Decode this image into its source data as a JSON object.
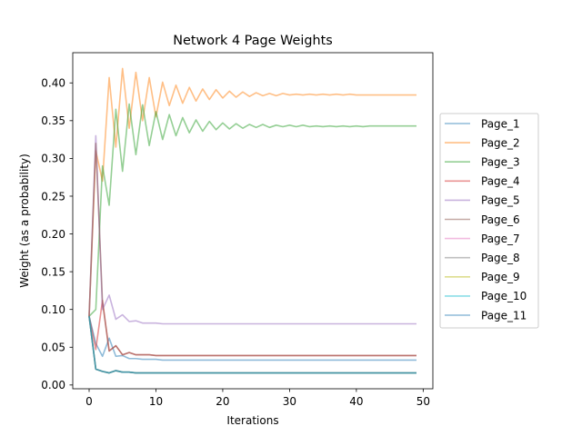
{
  "chart_data": {
    "type": "line",
    "title": "Network 4 Page Weights",
    "xlabel": "Iterations",
    "ylabel": "Weight (as a probability)",
    "xlim": [
      -2.45,
      51.45
    ],
    "ylim": [
      -0.005,
      0.44
    ],
    "xticks": [
      0,
      10,
      20,
      30,
      40,
      50
    ],
    "xtick_labels": [
      "0",
      "10",
      "20",
      "30",
      "40",
      "50"
    ],
    "yticks": [
      0.0,
      0.05,
      0.1,
      0.15,
      0.2,
      0.25,
      0.3,
      0.35,
      0.4
    ],
    "ytick_labels": [
      "0.00",
      "0.05",
      "0.10",
      "0.15",
      "0.20",
      "0.25",
      "0.30",
      "0.35",
      "0.40"
    ],
    "grid": false,
    "legend_position": "right, outside the axes",
    "line_alpha": 0.5,
    "x": [
      0,
      1,
      2,
      3,
      4,
      5,
      6,
      7,
      8,
      9,
      10,
      11,
      12,
      13,
      14,
      15,
      16,
      17,
      18,
      19,
      20,
      21,
      22,
      23,
      24,
      25,
      26,
      27,
      28,
      29,
      30,
      31,
      32,
      33,
      34,
      35,
      36,
      37,
      38,
      39,
      40,
      41,
      42,
      43,
      44,
      45,
      46,
      47,
      48,
      49
    ],
    "series": [
      {
        "name": "Page_1",
        "color": "#1f77b4",
        "values": [
          0.091,
          0.055,
          0.038,
          0.062,
          0.038,
          0.039,
          0.035,
          0.035,
          0.034,
          0.034,
          0.034,
          0.033,
          0.033,
          0.033,
          0.033,
          0.033,
          0.033,
          0.033,
          0.033,
          0.033,
          0.033,
          0.033,
          0.033,
          0.033,
          0.033,
          0.033,
          0.033,
          0.033,
          0.033,
          0.033,
          0.033,
          0.033,
          0.033,
          0.033,
          0.033,
          0.033,
          0.033,
          0.033,
          0.033,
          0.033,
          0.033,
          0.033,
          0.033,
          0.033,
          0.033,
          0.033,
          0.033,
          0.033,
          0.033,
          0.033
        ]
      },
      {
        "name": "Page_2",
        "color": "#ff7f0e",
        "values": [
          0.091,
          0.31,
          0.27,
          0.407,
          0.315,
          0.419,
          0.34,
          0.414,
          0.35,
          0.407,
          0.355,
          0.401,
          0.37,
          0.397,
          0.373,
          0.394,
          0.376,
          0.392,
          0.378,
          0.391,
          0.38,
          0.389,
          0.381,
          0.388,
          0.382,
          0.387,
          0.383,
          0.386,
          0.383,
          0.386,
          0.384,
          0.385,
          0.384,
          0.385,
          0.384,
          0.385,
          0.384,
          0.385,
          0.384,
          0.385,
          0.384,
          0.384,
          0.384,
          0.384,
          0.384,
          0.384,
          0.384,
          0.384,
          0.384,
          0.384
        ]
      },
      {
        "name": "Page_3",
        "color": "#2ca02c",
        "values": [
          0.091,
          0.1,
          0.29,
          0.238,
          0.365,
          0.283,
          0.372,
          0.305,
          0.371,
          0.317,
          0.362,
          0.325,
          0.358,
          0.33,
          0.354,
          0.334,
          0.351,
          0.336,
          0.349,
          0.338,
          0.347,
          0.339,
          0.346,
          0.34,
          0.345,
          0.341,
          0.345,
          0.341,
          0.344,
          0.342,
          0.344,
          0.342,
          0.344,
          0.342,
          0.343,
          0.342,
          0.343,
          0.342,
          0.343,
          0.342,
          0.343,
          0.342,
          0.343,
          0.343,
          0.343,
          0.343,
          0.343,
          0.343,
          0.343,
          0.343
        ]
      },
      {
        "name": "Page_4",
        "color": "#d62728",
        "values": [
          0.091,
          0.047,
          0.112,
          0.045,
          0.052,
          0.04,
          0.043,
          0.04,
          0.04,
          0.04,
          0.039,
          0.039,
          0.039,
          0.039,
          0.039,
          0.039,
          0.039,
          0.039,
          0.039,
          0.039,
          0.039,
          0.039,
          0.039,
          0.039,
          0.039,
          0.039,
          0.039,
          0.039,
          0.039,
          0.039,
          0.039,
          0.039,
          0.039,
          0.039,
          0.039,
          0.039,
          0.039,
          0.039,
          0.039,
          0.039,
          0.039,
          0.039,
          0.039,
          0.039,
          0.039,
          0.039,
          0.039,
          0.039,
          0.039,
          0.039
        ]
      },
      {
        "name": "Page_5",
        "color": "#9467bd",
        "values": [
          0.091,
          0.33,
          0.1,
          0.119,
          0.087,
          0.093,
          0.084,
          0.085,
          0.082,
          0.082,
          0.082,
          0.081,
          0.081,
          0.081,
          0.081,
          0.081,
          0.081,
          0.081,
          0.081,
          0.081,
          0.081,
          0.081,
          0.081,
          0.081,
          0.081,
          0.081,
          0.081,
          0.081,
          0.081,
          0.081,
          0.081,
          0.081,
          0.081,
          0.081,
          0.081,
          0.081,
          0.081,
          0.081,
          0.081,
          0.081,
          0.081,
          0.081,
          0.081,
          0.081,
          0.081,
          0.081,
          0.081,
          0.081,
          0.081,
          0.081
        ]
      },
      {
        "name": "Page_6",
        "color": "#8c564b",
        "values": [
          0.091,
          0.32,
          0.11,
          0.045,
          0.052,
          0.04,
          0.043,
          0.04,
          0.04,
          0.04,
          0.039,
          0.039,
          0.039,
          0.039,
          0.039,
          0.039,
          0.039,
          0.039,
          0.039,
          0.039,
          0.039,
          0.039,
          0.039,
          0.039,
          0.039,
          0.039,
          0.039,
          0.039,
          0.039,
          0.039,
          0.039,
          0.039,
          0.039,
          0.039,
          0.039,
          0.039,
          0.039,
          0.039,
          0.039,
          0.039,
          0.039,
          0.039,
          0.039,
          0.039,
          0.039,
          0.039,
          0.039,
          0.039,
          0.039,
          0.039
        ]
      },
      {
        "name": "Page_7",
        "color": "#e377c2",
        "values": [
          0.091,
          0.021,
          0.018,
          0.016,
          0.019,
          0.017,
          0.017,
          0.016,
          0.016,
          0.016,
          0.016,
          0.016,
          0.016,
          0.016,
          0.016,
          0.016,
          0.016,
          0.016,
          0.016,
          0.016,
          0.016,
          0.016,
          0.016,
          0.016,
          0.016,
          0.016,
          0.016,
          0.016,
          0.016,
          0.016,
          0.016,
          0.016,
          0.016,
          0.016,
          0.016,
          0.016,
          0.016,
          0.016,
          0.016,
          0.016,
          0.016,
          0.016,
          0.016,
          0.016,
          0.016,
          0.016,
          0.016,
          0.016,
          0.016,
          0.016
        ]
      },
      {
        "name": "Page_8",
        "color": "#7f7f7f",
        "values": [
          0.091,
          0.021,
          0.018,
          0.016,
          0.019,
          0.017,
          0.017,
          0.016,
          0.016,
          0.016,
          0.016,
          0.016,
          0.016,
          0.016,
          0.016,
          0.016,
          0.016,
          0.016,
          0.016,
          0.016,
          0.016,
          0.016,
          0.016,
          0.016,
          0.016,
          0.016,
          0.016,
          0.016,
          0.016,
          0.016,
          0.016,
          0.016,
          0.016,
          0.016,
          0.016,
          0.016,
          0.016,
          0.016,
          0.016,
          0.016,
          0.016,
          0.016,
          0.016,
          0.016,
          0.016,
          0.016,
          0.016,
          0.016,
          0.016,
          0.016
        ]
      },
      {
        "name": "Page_9",
        "color": "#bcbd22",
        "values": [
          0.091,
          0.021,
          0.018,
          0.016,
          0.019,
          0.017,
          0.017,
          0.016,
          0.016,
          0.016,
          0.016,
          0.016,
          0.016,
          0.016,
          0.016,
          0.016,
          0.016,
          0.016,
          0.016,
          0.016,
          0.016,
          0.016,
          0.016,
          0.016,
          0.016,
          0.016,
          0.016,
          0.016,
          0.016,
          0.016,
          0.016,
          0.016,
          0.016,
          0.016,
          0.016,
          0.016,
          0.016,
          0.016,
          0.016,
          0.016,
          0.016,
          0.016,
          0.016,
          0.016,
          0.016,
          0.016,
          0.016,
          0.016,
          0.016,
          0.016
        ]
      },
      {
        "name": "Page_10",
        "color": "#17becf",
        "values": [
          0.091,
          0.021,
          0.018,
          0.016,
          0.019,
          0.017,
          0.017,
          0.016,
          0.016,
          0.016,
          0.016,
          0.016,
          0.016,
          0.016,
          0.016,
          0.016,
          0.016,
          0.016,
          0.016,
          0.016,
          0.016,
          0.016,
          0.016,
          0.016,
          0.016,
          0.016,
          0.016,
          0.016,
          0.016,
          0.016,
          0.016,
          0.016,
          0.016,
          0.016,
          0.016,
          0.016,
          0.016,
          0.016,
          0.016,
          0.016,
          0.016,
          0.016,
          0.016,
          0.016,
          0.016,
          0.016,
          0.016,
          0.016,
          0.016,
          0.016
        ]
      },
      {
        "name": "Page_11",
        "color": "#1f77b4",
        "values": [
          0.091,
          0.021,
          0.018,
          0.016,
          0.019,
          0.017,
          0.017,
          0.016,
          0.016,
          0.016,
          0.016,
          0.016,
          0.016,
          0.016,
          0.016,
          0.016,
          0.016,
          0.016,
          0.016,
          0.016,
          0.016,
          0.016,
          0.016,
          0.016,
          0.016,
          0.016,
          0.016,
          0.016,
          0.016,
          0.016,
          0.016,
          0.016,
          0.016,
          0.016,
          0.016,
          0.016,
          0.016,
          0.016,
          0.016,
          0.016,
          0.016,
          0.016,
          0.016,
          0.016,
          0.016,
          0.016,
          0.016,
          0.016,
          0.016,
          0.016
        ]
      }
    ]
  }
}
